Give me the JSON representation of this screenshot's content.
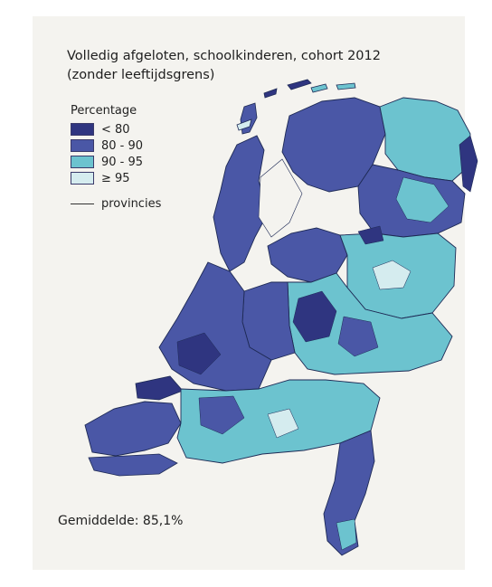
{
  "map": {
    "title_line1": "Volledig afgeloten, schoolkinderen, cohort 2012",
    "title_line2": "(zonder leeftijdsgrens)",
    "legend": {
      "title": "Percentage",
      "items": [
        {
          "label": "< 80",
          "color": "#2f3580"
        },
        {
          "label": "80 - 90",
          "color": "#4a57a6"
        },
        {
          "label": "90 - 95",
          "color": "#6cc3cf"
        },
        {
          "label": "≥ 95",
          "color": "#d5ecef"
        }
      ],
      "line_label": "provincies"
    },
    "average_text": "Gemiddelde: 85,1%"
  }
}
